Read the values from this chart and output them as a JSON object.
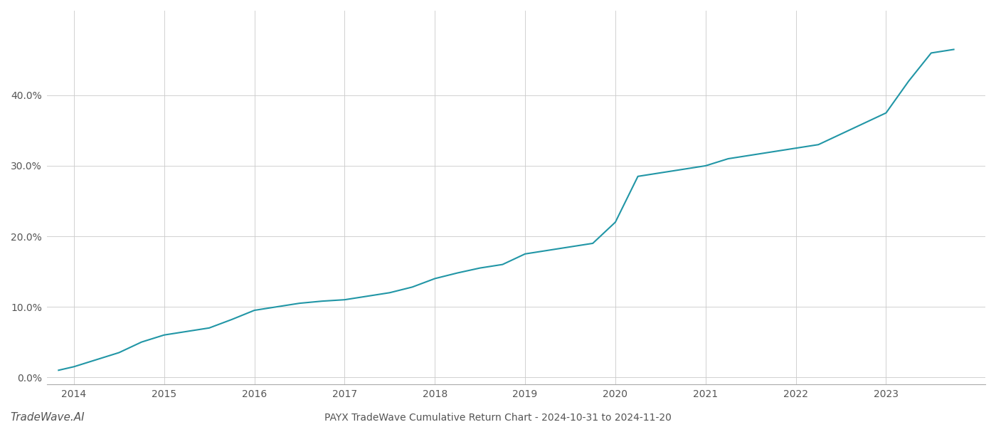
{
  "title": "PAYX TradeWave Cumulative Return Chart - 2024-10-31 to 2024-11-20",
  "watermark": "TradeWave.AI",
  "line_color": "#2196a6",
  "background_color": "#ffffff",
  "grid_color": "#cccccc",
  "x_values": [
    2013.83,
    2014.0,
    2014.25,
    2014.5,
    2014.75,
    2015.0,
    2015.25,
    2015.5,
    2015.75,
    2016.0,
    2016.25,
    2016.5,
    2016.75,
    2017.0,
    2017.25,
    2017.5,
    2017.75,
    2018.0,
    2018.25,
    2018.5,
    2018.75,
    2019.0,
    2019.25,
    2019.5,
    2019.75,
    2020.0,
    2020.25,
    2020.5,
    2020.75,
    2021.0,
    2021.25,
    2021.5,
    2021.75,
    2022.0,
    2022.25,
    2022.5,
    2022.75,
    2023.0,
    2023.25,
    2023.5,
    2023.75
  ],
  "y_values": [
    0.01,
    0.015,
    0.025,
    0.035,
    0.05,
    0.06,
    0.065,
    0.07,
    0.082,
    0.095,
    0.1,
    0.105,
    0.108,
    0.11,
    0.115,
    0.12,
    0.128,
    0.14,
    0.148,
    0.155,
    0.16,
    0.175,
    0.18,
    0.185,
    0.19,
    0.22,
    0.285,
    0.29,
    0.295,
    0.3,
    0.31,
    0.315,
    0.32,
    0.325,
    0.33,
    0.345,
    0.36,
    0.375,
    0.42,
    0.46,
    0.465
  ],
  "xlim": [
    2013.7,
    2024.1
  ],
  "ylim": [
    -0.01,
    0.52
  ],
  "yticks": [
    0.0,
    0.1,
    0.2,
    0.3,
    0.4
  ],
  "ytick_labels": [
    "0.0%",
    "10.0%",
    "20.0%",
    "30.0%",
    "40.0%"
  ],
  "xticks": [
    2014,
    2015,
    2016,
    2017,
    2018,
    2019,
    2020,
    2021,
    2022,
    2023
  ],
  "xtick_labels": [
    "2014",
    "2015",
    "2016",
    "2017",
    "2018",
    "2019",
    "2020",
    "2021",
    "2022",
    "2023"
  ],
  "line_width": 1.5,
  "title_fontsize": 10,
  "tick_fontsize": 10,
  "watermark_fontsize": 11
}
